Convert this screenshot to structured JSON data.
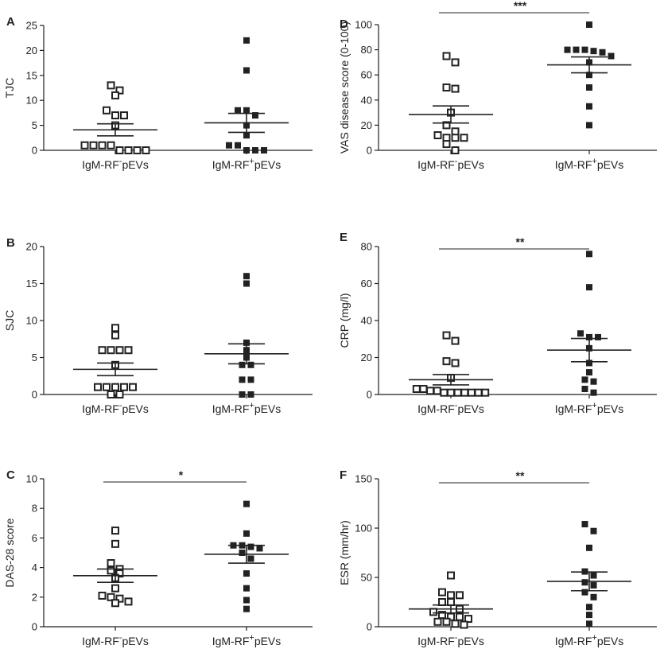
{
  "figure_id": "rf-pev-clinical-panels",
  "chart_data": [
    {
      "type": "scatter",
      "panel": "A",
      "title": "",
      "xlabel": "",
      "ylabel": "TJC",
      "ylim": [
        0,
        25
      ],
      "yticks": [
        0,
        5,
        10,
        15,
        20,
        25
      ],
      "categories": [
        {
          "prefix": "IgM-RF",
          "sup": "-",
          "suffix": "pEVs"
        },
        {
          "prefix": "IgM-RF",
          "sup": "+",
          "suffix": "pEVs"
        }
      ],
      "series": [
        {
          "name": "IgM-RF- pEVs",
          "marker": "open-square",
          "values": [
            13,
            12,
            11,
            8,
            7,
            7,
            5,
            1,
            1,
            1,
            0,
            0,
            0,
            0,
            1
          ],
          "mean": 4.1,
          "sem": 1.2
        },
        {
          "name": "IgM-RF+ pEVs",
          "marker": "filled-square",
          "values": [
            22,
            16,
            8,
            8,
            7,
            5,
            3,
            1,
            1,
            0,
            0,
            0
          ],
          "mean": 5.5,
          "sem": 1.9
        }
      ],
      "significance": ""
    },
    {
      "type": "scatter",
      "panel": "B",
      "title": "",
      "xlabel": "",
      "ylabel": "SJC",
      "ylim": [
        0,
        20
      ],
      "yticks": [
        0,
        5,
        10,
        15,
        20
      ],
      "categories": [
        {
          "prefix": "IgM-RF",
          "sup": "-",
          "suffix": "pEVs"
        },
        {
          "prefix": "IgM-RF",
          "sup": "+",
          "suffix": "pEVs"
        }
      ],
      "series": [
        {
          "name": "IgM-RF- pEVs",
          "marker": "open-square",
          "values": [
            9,
            8,
            6,
            6,
            6,
            6,
            4,
            1,
            1,
            1,
            1,
            1,
            0,
            0
          ],
          "mean": 3.4,
          "sem": 0.85
        },
        {
          "name": "IgM-RF+ pEVs",
          "marker": "filled-square",
          "values": [
            16,
            15,
            7,
            6,
            5,
            4,
            4,
            2,
            2,
            0,
            0
          ],
          "mean": 5.5,
          "sem": 1.35
        }
      ],
      "significance": ""
    },
    {
      "type": "scatter",
      "panel": "C",
      "title": "",
      "xlabel": "",
      "ylabel": "DAS-28 score",
      "ylim": [
        0,
        10
      ],
      "yticks": [
        0,
        2,
        4,
        6,
        8,
        10
      ],
      "categories": [
        {
          "prefix": "IgM-RF",
          "sup": "-",
          "suffix": "pEVs"
        },
        {
          "prefix": "IgM-RF",
          "sup": "+",
          "suffix": "pEVs"
        }
      ],
      "series": [
        {
          "name": "IgM-RF- pEVs",
          "marker": "open-square",
          "values": [
            6.5,
            5.6,
            4.3,
            3.9,
            3.8,
            3.6,
            3.3,
            2.6,
            2.1,
            2.0,
            1.9,
            1.7,
            1.6
          ],
          "mean": 3.45,
          "sem": 0.45
        },
        {
          "name": "IgM-RF+ pEVs",
          "marker": "filled-square",
          "values": [
            8.3,
            6.3,
            5.5,
            5.5,
            5.4,
            5.3,
            5.0,
            4.6,
            3.6,
            2.6,
            1.8,
            1.2
          ],
          "mean": 4.9,
          "sem": 0.6
        }
      ],
      "significance": "*"
    },
    {
      "type": "scatter",
      "panel": "D",
      "title": "",
      "xlabel": "",
      "ylabel": "VAS disease score (0-100)",
      "ylim": [
        0,
        100
      ],
      "yticks": [
        0,
        20,
        40,
        60,
        80,
        100
      ],
      "categories": [
        {
          "prefix": "IgM-RF",
          "sup": "-",
          "suffix": "pEVs"
        },
        {
          "prefix": "IgM-RF",
          "sup": "+",
          "suffix": "pEVs"
        }
      ],
      "series": [
        {
          "name": "IgM-RF- pEVs",
          "marker": "open-square",
          "values": [
            75,
            70,
            50,
            49,
            30,
            20,
            15,
            12,
            10,
            10,
            10,
            5,
            0
          ],
          "mean": 28.5,
          "sem": 6.8
        },
        {
          "name": "IgM-RF+ pEVs",
          "marker": "filled-square",
          "values": [
            100,
            80,
            80,
            80,
            79,
            78,
            75,
            70,
            60,
            50,
            35,
            20
          ],
          "mean": 68,
          "sem": 6.3
        }
      ],
      "significance": "***"
    },
    {
      "type": "scatter",
      "panel": "E",
      "title": "",
      "xlabel": "",
      "ylabel": "CRP (mg/l)",
      "ylim": [
        0,
        80
      ],
      "yticks": [
        0,
        20,
        40,
        60,
        80
      ],
      "categories": [
        {
          "prefix": "IgM-RF",
          "sup": "-",
          "suffix": "pEVs"
        },
        {
          "prefix": "IgM-RF",
          "sup": "+",
          "suffix": "pEVs"
        }
      ],
      "series": [
        {
          "name": "IgM-RF- pEVs",
          "marker": "open-square",
          "values": [
            32,
            29,
            18,
            17,
            9,
            3,
            3,
            2,
            2,
            1,
            1,
            1,
            1,
            1,
            1,
            1
          ],
          "mean": 8,
          "sem": 2.8
        },
        {
          "name": "IgM-RF+ pEVs",
          "marker": "filled-square",
          "values": [
            76,
            58,
            33,
            31,
            31,
            25,
            17,
            12,
            8,
            7,
            3,
            1
          ],
          "mean": 24,
          "sem": 6.3
        }
      ],
      "significance": "**"
    },
    {
      "type": "scatter",
      "panel": "F",
      "title": "",
      "xlabel": "",
      "ylabel": "ESR (mm/hr)",
      "ylim": [
        0,
        150
      ],
      "yticks": [
        0,
        50,
        100,
        150
      ],
      "categories": [
        {
          "prefix": "IgM-RF",
          "sup": "-",
          "suffix": "pEVs"
        },
        {
          "prefix": "IgM-RF",
          "sup": "+",
          "suffix": "pEVs"
        }
      ],
      "series": [
        {
          "name": "IgM-RF- pEVs",
          "marker": "open-square",
          "values": [
            52,
            35,
            32,
            32,
            25,
            25,
            18,
            15,
            12,
            10,
            10,
            8,
            5,
            5,
            3,
            2
          ],
          "mean": 18,
          "sem": 4
        },
        {
          "name": "IgM-RF+ pEVs",
          "marker": "filled-square",
          "values": [
            104,
            97,
            80,
            56,
            52,
            45,
            42,
            35,
            30,
            20,
            12,
            3
          ],
          "mean": 46,
          "sem": 9.5
        }
      ],
      "significance": "**"
    }
  ]
}
